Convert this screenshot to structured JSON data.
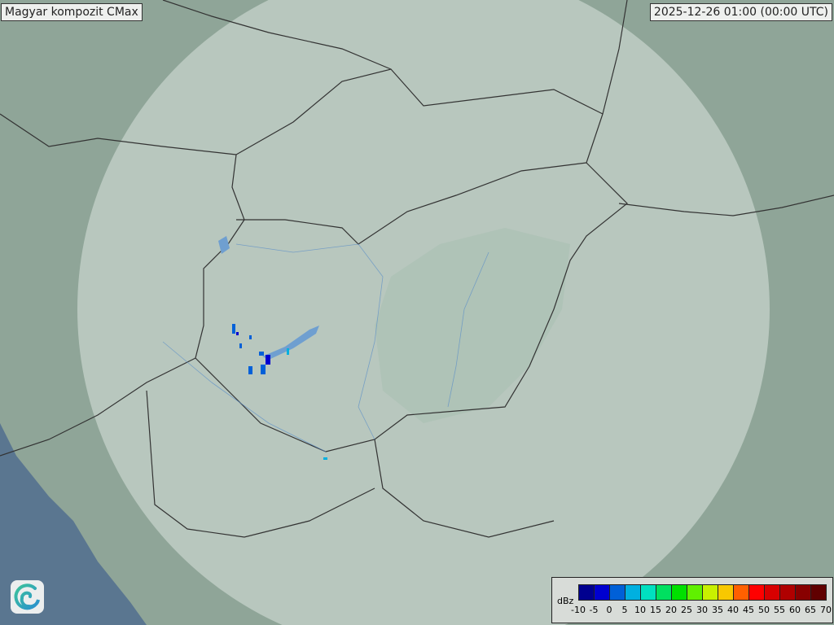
{
  "header": {
    "title": "Magyar kompozit  CMax",
    "timestamp": "2025-12-26 01:00 (00:00 UTC)"
  },
  "legend": {
    "unit": "dBz",
    "ticks": [
      "-10",
      "-5",
      "0",
      "5",
      "10",
      "15",
      "20",
      "25",
      "30",
      "35",
      "40",
      "45",
      "50",
      "55",
      "60",
      "65",
      "70"
    ],
    "colors": [
      "#00008f",
      "#0000d0",
      "#0060d8",
      "#00b0e0",
      "#00e0c0",
      "#00e060",
      "#00e000",
      "#60f000",
      "#c8f000",
      "#f8c800",
      "#ff6000",
      "#ff0000",
      "#d80000",
      "#b00000",
      "#880000",
      "#600000"
    ]
  },
  "map": {
    "land_color": "#8fa598",
    "coverage_color": "#c5d3cb",
    "sea_color": "#5a7690",
    "border_color": "#333333",
    "echo_color": "#0060d8"
  },
  "logo": {
    "icon": "swirl-logo-icon"
  }
}
